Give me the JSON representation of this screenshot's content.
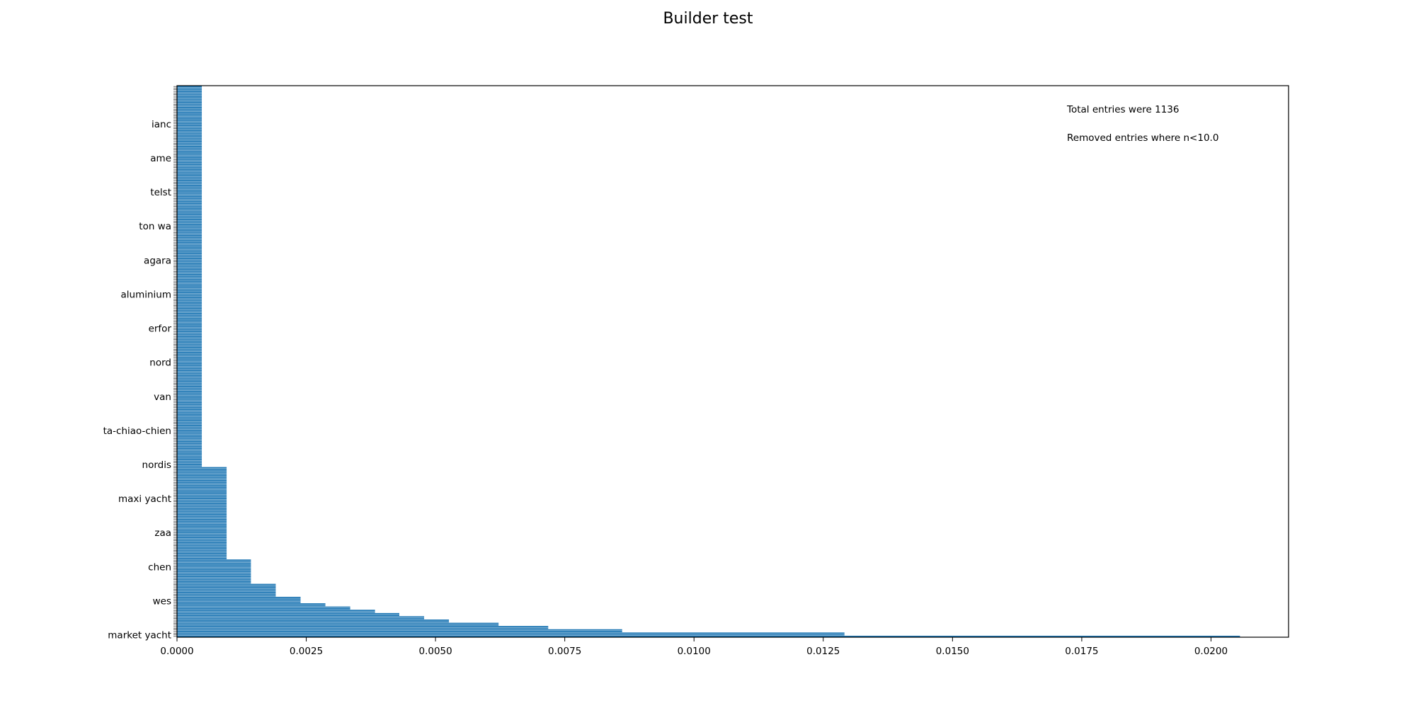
{
  "chart_data": {
    "type": "bar",
    "orientation": "horizontal",
    "title": "Builder test",
    "xlabel": "",
    "ylabel": "",
    "xlim": [
      0,
      0.0215
    ],
    "xticks": [
      "0.0000",
      "0.0025",
      "0.0050",
      "0.0075",
      "0.0100",
      "0.0125",
      "0.0150",
      "0.0175",
      "0.0200"
    ],
    "xtick_values": [
      0,
      0.0025,
      0.005,
      0.0075,
      0.01,
      0.0125,
      0.015,
      0.0175,
      0.02
    ],
    "grid": false,
    "bar_color": "#1f77b4",
    "annotations": [
      "Total entries were 1136",
      "Removed entries where n<10.0"
    ],
    "bar_groups": [
      {
        "value": 0.00048,
        "count": 235
      },
      {
        "value": 0.00096,
        "count": 57
      },
      {
        "value": 0.00143,
        "count": 15
      },
      {
        "value": 0.00191,
        "count": 8
      },
      {
        "value": 0.00239,
        "count": 4
      },
      {
        "value": 0.00287,
        "count": 2
      },
      {
        "value": 0.00335,
        "count": 2
      },
      {
        "value": 0.00383,
        "count": 2
      },
      {
        "value": 0.0043,
        "count": 2
      },
      {
        "value": 0.00478,
        "count": 2
      },
      {
        "value": 0.00526,
        "count": 2
      },
      {
        "value": 0.00622,
        "count": 2
      },
      {
        "value": 0.00718,
        "count": 2
      },
      {
        "value": 0.00861,
        "count": 2
      },
      {
        "value": 0.01291,
        "count": 2
      },
      {
        "value": 0.02056,
        "count": 1
      }
    ],
    "visible_category_labels": [
      "market yacht",
      "wes",
      "chen",
      "zaa",
      "maxi yacht",
      "nordis",
      "ta-chiao-chien",
      "van",
      "nord",
      "erfor",
      "aluminium",
      "agara",
      "ton wa",
      "telst",
      "ame",
      "ianc"
    ]
  }
}
